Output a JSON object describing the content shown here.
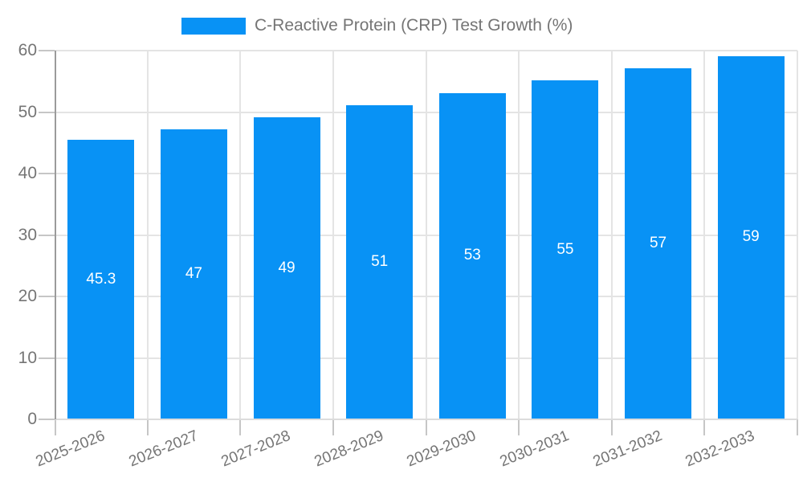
{
  "legend": {
    "label": "C-Reactive Protein (CRP) Test Growth (%)"
  },
  "colors": {
    "bar": "#0892F5",
    "label_text": "#757575",
    "value_text": "#FFFFFF",
    "grid": "#E4E4E4",
    "axis_line": "#9B9B9B",
    "tick": "#C6C6C6",
    "baseline": "#DCDCDC",
    "background": "#FFFFFF"
  },
  "chart_data": {
    "type": "bar",
    "title": "",
    "legend_entries": [
      "C-Reactive Protein (CRP) Test Growth (%)"
    ],
    "legend_position": "top",
    "categories": [
      "2025-2026",
      "2026-2027",
      "2027-2028",
      "2028-2029",
      "2029-2030",
      "2030-2031",
      "2031-2032",
      "2032-2033"
    ],
    "values": [
      45.3,
      47,
      49,
      51,
      53,
      55,
      57,
      59
    ],
    "value_labels": [
      "45.3",
      "47",
      "49",
      "51",
      "53",
      "55",
      "57",
      "59"
    ],
    "xlabel": "",
    "ylabel": "",
    "ylim": [
      0,
      60
    ],
    "yticks": [
      0,
      10,
      20,
      30,
      40,
      50,
      60
    ],
    "grid": true,
    "value_labels_inside_bars": true
  }
}
